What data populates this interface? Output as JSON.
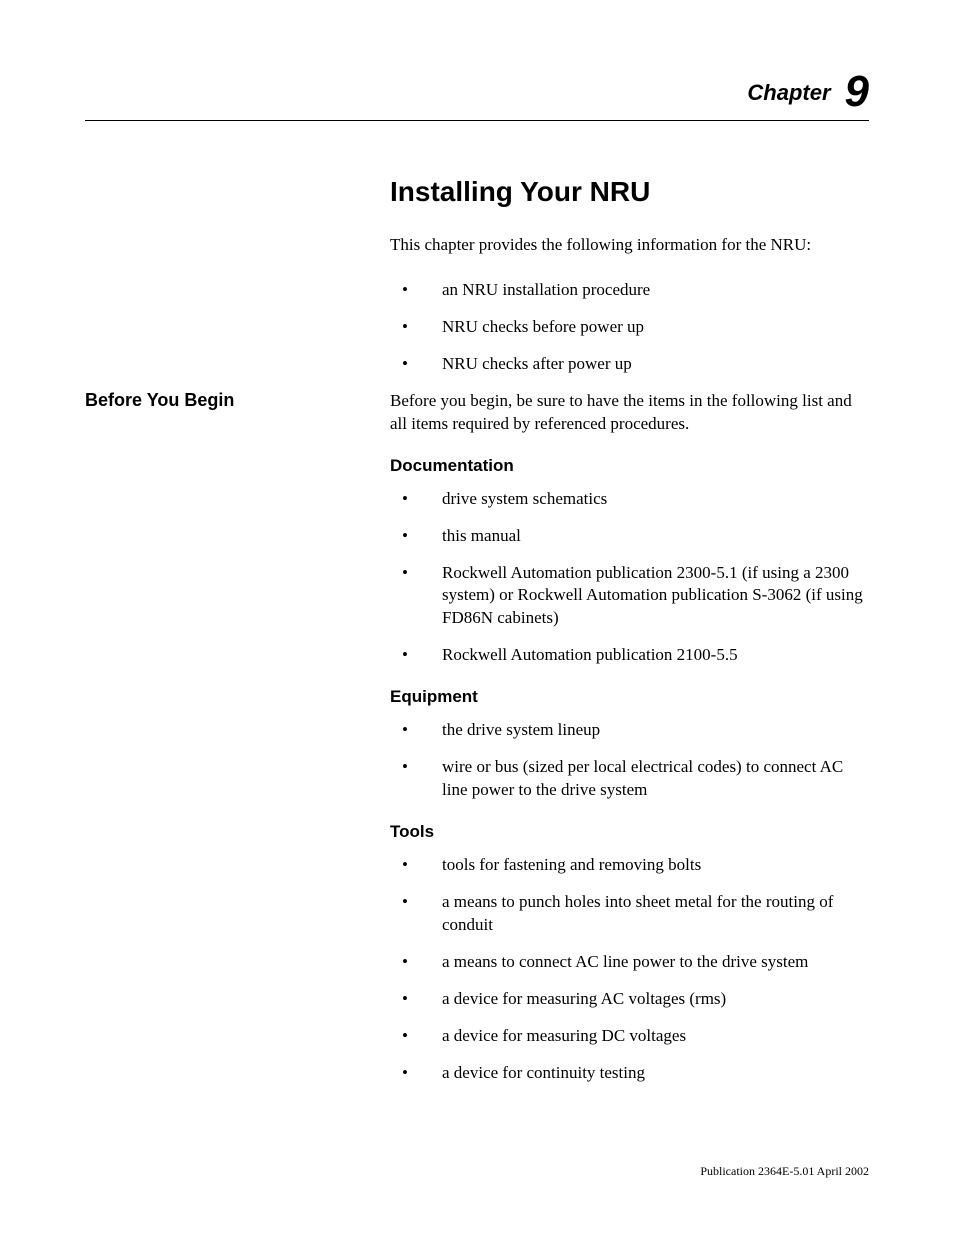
{
  "chapter": {
    "label": "Chapter",
    "number": "9"
  },
  "title": "Installing Your NRU",
  "intro": "This chapter provides the following information for the NRU:",
  "intro_bullets": [
    "an NRU installation procedure",
    "NRU checks before power up",
    "NRU checks after power up"
  ],
  "section_heading": "Before You Begin",
  "section_intro": "Before you begin, be sure to have the items in the following list and all items required by referenced procedures.",
  "subsections": [
    {
      "heading": "Documentation",
      "items": [
        "drive system schematics",
        "this manual",
        "Rockwell Automation publication 2300-5.1 (if using a 2300 system) or Rockwell Automation publication S-3062 (if using FD86N cabinets)",
        "Rockwell Automation publication 2100-5.5"
      ]
    },
    {
      "heading": "Equipment",
      "items": [
        "the drive system lineup",
        "wire or bus (sized per local electrical codes) to connect AC line power to the drive system"
      ]
    },
    {
      "heading": "Tools",
      "items": [
        "tools for fastening and removing bolts",
        "a means to punch holes into sheet metal for the routing of conduit",
        "a means to connect AC line power to the drive system",
        "a device for measuring AC voltages (rms)",
        "a device for measuring DC voltages",
        "a device for continuity testing"
      ]
    }
  ],
  "footer": "Publication 2364E-5.01 April 2002"
}
